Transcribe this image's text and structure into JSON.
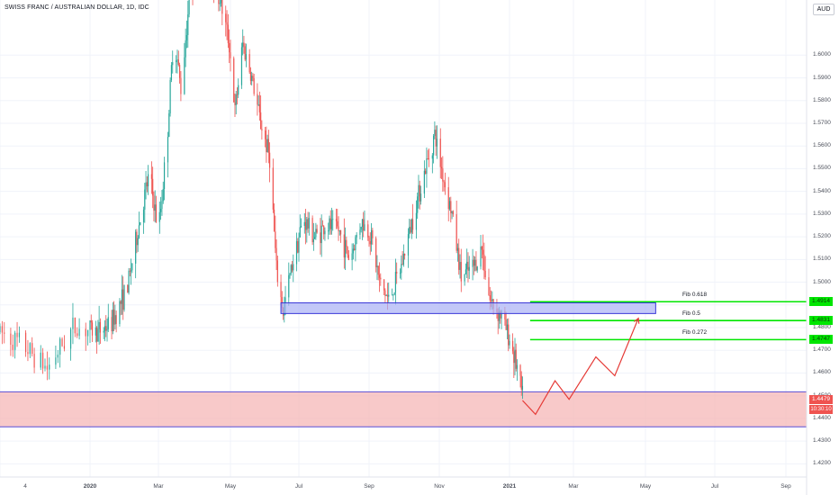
{
  "title": "SWISS FRANC / AUSTRALIAN DOLLAR, 1D, IDC",
  "currency_button": "AUD",
  "colors": {
    "up": "#26a69a",
    "down": "#ef5350",
    "fib_line": "#00e600",
    "demand_zone_fill": "#f5b7b7",
    "demand_zone_border": "#5a4fd6",
    "blue_zone_fill": "#aab0f5",
    "blue_zone_border": "#3a37d8",
    "projection": "#e53935",
    "last_price_tag": "#ef5350",
    "grid": "#f0f3fa"
  },
  "chart_data": {
    "type": "candlestick",
    "title": "SWISS FRANC / AUSTRALIAN DOLLAR, 1D, IDC",
    "xlabel": "",
    "ylabel": "",
    "x_ticks": [
      "4",
      "2020",
      "Mar",
      "May",
      "Jul",
      "Sep",
      "Nov",
      "2021",
      "Mar",
      "May",
      "Jul",
      "Sep"
    ],
    "y_ticks": [
      "1.4200",
      "1.4300",
      "1.4400",
      "1.4500",
      "1.4600",
      "1.4700",
      "1.4800",
      "1.4900",
      "1.5000",
      "1.5100",
      "1.5200",
      "1.5300",
      "1.5400",
      "1.5500",
      "1.5600",
      "1.5700",
      "1.5800",
      "1.5900",
      "1.6000"
    ],
    "ylim": [
      1.4142,
      1.6243
    ],
    "price_path": [
      [
        "2019-11-20",
        1.478
      ],
      [
        "2019-12-01",
        1.472
      ],
      [
        "2019-12-12",
        1.462
      ],
      [
        "2019-12-24",
        1.48
      ],
      [
        "2020-01-08",
        1.478
      ],
      [
        "2020-01-20",
        1.482
      ],
      [
        "2020-02-03",
        1.498
      ],
      [
        "2020-02-14",
        1.528
      ],
      [
        "2020-02-22",
        1.548
      ],
      [
        "2020-03-01",
        1.522
      ],
      [
        "2020-03-08",
        1.56
      ],
      [
        "2020-03-14",
        1.61
      ],
      [
        "2020-03-20",
        1.585
      ],
      [
        "2020-03-28",
        1.63
      ],
      [
        "2020-04-08",
        1.64
      ],
      [
        "2020-04-22",
        1.625
      ],
      [
        "2020-04-30",
        1.605
      ],
      [
        "2020-05-05",
        1.575
      ],
      [
        "2020-05-12",
        1.605
      ],
      [
        "2020-05-20",
        1.59
      ],
      [
        "2020-05-28",
        1.57
      ],
      [
        "2020-06-05",
        1.555
      ],
      [
        "2020-06-11",
        1.505
      ],
      [
        "2020-06-17",
        1.487
      ],
      [
        "2020-06-25",
        1.508
      ],
      [
        "2020-07-05",
        1.528
      ],
      [
        "2020-07-15",
        1.52
      ],
      [
        "2020-07-25",
        1.525
      ],
      [
        "2020-08-05",
        1.523
      ],
      [
        "2020-08-15",
        1.51
      ],
      [
        "2020-08-25",
        1.527
      ],
      [
        "2020-09-03",
        1.52
      ],
      [
        "2020-09-10",
        1.5
      ],
      [
        "2020-09-18",
        1.492
      ],
      [
        "2020-09-28",
        1.505
      ],
      [
        "2020-10-05",
        1.52
      ],
      [
        "2020-10-12",
        1.535
      ],
      [
        "2020-10-20",
        1.55
      ],
      [
        "2020-10-28",
        1.565
      ],
      [
        "2020-11-05",
        1.545
      ],
      [
        "2020-11-12",
        1.53
      ],
      [
        "2020-11-20",
        1.502
      ],
      [
        "2020-12-01",
        1.507
      ],
      [
        "2020-12-08",
        1.515
      ],
      [
        "2020-12-15",
        1.492
      ],
      [
        "2020-12-25",
        1.485
      ],
      [
        "2021-01-03",
        1.472
      ],
      [
        "2021-01-08",
        1.462
      ],
      [
        "2021-01-13",
        1.449
      ]
    ],
    "last_price": "1.4479",
    "countdown": "10:30:10",
    "price_tags": [
      {
        "label": "1.4914",
        "price": 1.4914
      },
      {
        "label": "1.4831",
        "price": 1.4831
      },
      {
        "label": "1.4747",
        "price": 1.4747
      }
    ],
    "fib_levels": [
      {
        "label": "Fib 0.618",
        "price": 1.4914
      },
      {
        "label": "Fib 0.5",
        "price": 1.4831
      },
      {
        "label": "Fib 0.272",
        "price": 1.4747
      }
    ],
    "zones": [
      {
        "name": "demand",
        "top": 1.4517,
        "bottom": 1.4363,
        "from": "2019-11-20",
        "to": "end"
      },
      {
        "name": "resistance",
        "top": 1.4909,
        "bottom": 1.4862,
        "from": "2020-06-15",
        "to": "2021-05-10"
      }
    ],
    "projection": [
      [
        "2021-01-13",
        1.4479
      ],
      [
        "2021-01-25",
        1.4418
      ],
      [
        "2021-02-12",
        1.4566
      ],
      [
        "2021-02-25",
        1.4484
      ],
      [
        "2021-03-20",
        1.4671
      ],
      [
        "2021-04-05",
        1.4588
      ],
      [
        "2021-04-25",
        1.4841
      ]
    ]
  }
}
